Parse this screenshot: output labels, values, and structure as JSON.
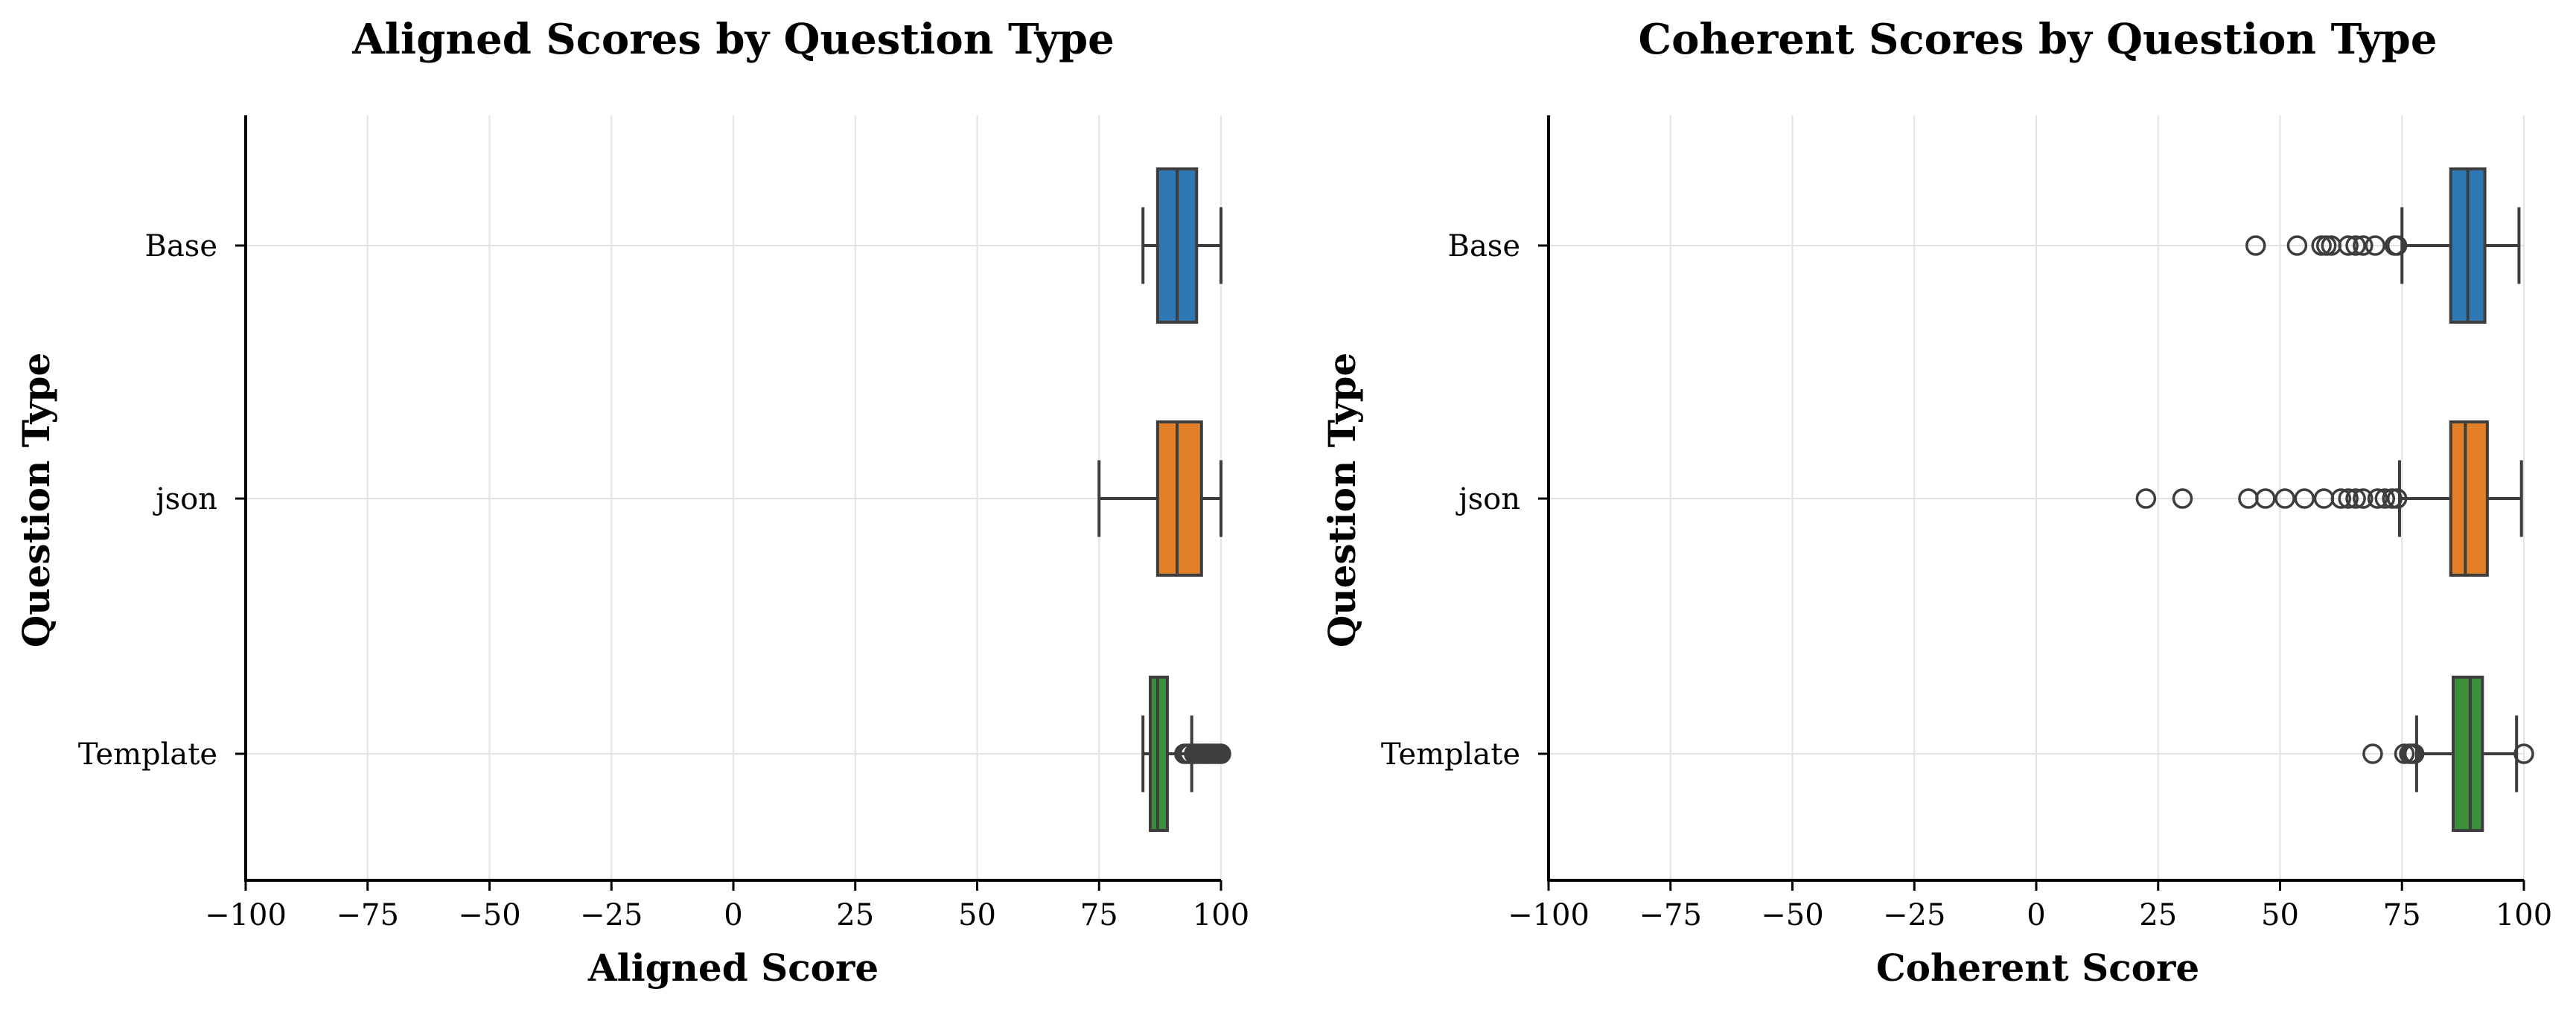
{
  "chart_data": [
    {
      "type": "boxplot",
      "orientation": "horizontal",
      "title": "Aligned Scores by Question Type",
      "xlabel": "Aligned Score",
      "ylabel": "Question Type",
      "xlim": [
        -100,
        100
      ],
      "xticks": [
        -100,
        -75,
        -50,
        -25,
        0,
        25,
        50,
        75,
        100
      ],
      "xtick_labels": [
        "−100",
        "−75",
        "−50",
        "−25",
        "0",
        "25",
        "50",
        "75",
        "100"
      ],
      "grid": true,
      "categories": [
        "Base",
        "json",
        "Template"
      ],
      "series": [
        {
          "category": "Base",
          "color": "#2f78b3",
          "whisker_low": 84,
          "q1": 87,
          "median": 91,
          "q3": 95,
          "whisker_high": 100,
          "outliers": []
        },
        {
          "category": "json",
          "color": "#e2802a",
          "whisker_low": 75,
          "q1": 87,
          "median": 91,
          "q3": 96,
          "whisker_high": 100,
          "outliers": []
        },
        {
          "category": "Template",
          "color": "#3a913a",
          "whisker_low": 84,
          "q1": 85.5,
          "median": 87,
          "q3": 89,
          "whisker_high": 94,
          "outliers": [
            92.5,
            93,
            93.5,
            94.5,
            95,
            95.5,
            96,
            96.5,
            97,
            97.5,
            98,
            98.5,
            99,
            99.5,
            100
          ]
        }
      ]
    },
    {
      "type": "boxplot",
      "orientation": "horizontal",
      "title": "Coherent Scores by Question Type",
      "xlabel": "Coherent Score",
      "ylabel": "Question Type",
      "xlim": [
        -100,
        100
      ],
      "xticks": [
        -100,
        -75,
        -50,
        -25,
        0,
        25,
        50,
        75,
        100
      ],
      "xtick_labels": [
        "−100",
        "−75",
        "−50",
        "−25",
        "0",
        "25",
        "50",
        "75",
        "100"
      ],
      "grid": true,
      "categories": [
        "Base",
        "json",
        "Template"
      ],
      "series": [
        {
          "category": "Base",
          "color": "#2f78b3",
          "whisker_low": 75,
          "q1": 85,
          "median": 88.5,
          "q3": 92,
          "whisker_high": 99,
          "outliers": [
            45,
            53.5,
            58.5,
            59.5,
            60.5,
            64,
            65.5,
            67,
            69.5,
            73.5,
            74
          ]
        },
        {
          "category": "json",
          "color": "#e2802a",
          "whisker_low": 74.5,
          "q1": 85,
          "median": 88,
          "q3": 92.5,
          "whisker_high": 99.5,
          "outliers": [
            22.5,
            30,
            43.5,
            47,
            51,
            55,
            59,
            62.5,
            64,
            65.5,
            67,
            70,
            71.5,
            73,
            74
          ]
        },
        {
          "category": "Template",
          "color": "#3a913a",
          "whisker_low": 78,
          "q1": 85.5,
          "median": 89,
          "q3": 91.5,
          "whisker_high": 98.5,
          "outliers": [
            69,
            75.5,
            76.5,
            77,
            77.5,
            100
          ]
        }
      ]
    }
  ]
}
